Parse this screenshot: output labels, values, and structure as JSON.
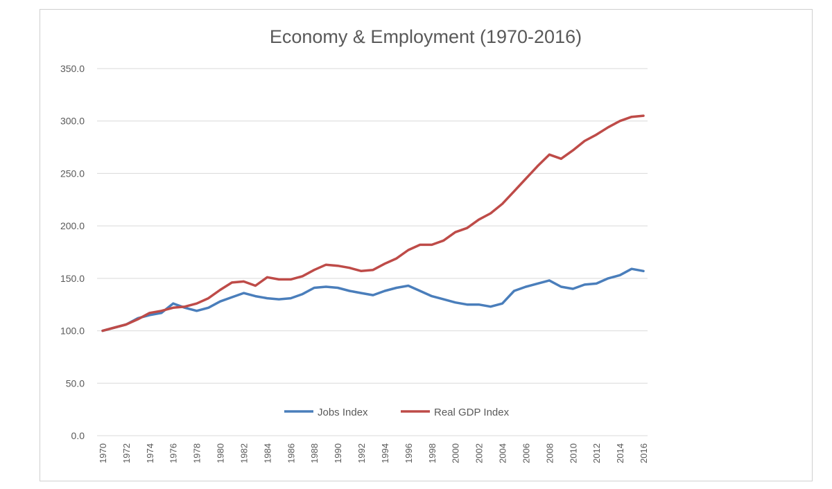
{
  "chart_data": {
    "type": "line",
    "title": "Economy & Employment (1970-2016)",
    "xlabel": "",
    "ylabel": "",
    "ylim": [
      0,
      350
    ],
    "yticks": [
      "0.0",
      "50.0",
      "100.0",
      "150.0",
      "200.0",
      "250.0",
      "300.0",
      "350.0"
    ],
    "grid": "horizontal",
    "legend": "bottom-center",
    "x": [
      1970,
      1971,
      1972,
      1973,
      1974,
      1975,
      1976,
      1977,
      1978,
      1979,
      1980,
      1981,
      1982,
      1983,
      1984,
      1985,
      1986,
      1987,
      1988,
      1989,
      1990,
      1991,
      1992,
      1993,
      1994,
      1995,
      1996,
      1997,
      1998,
      1999,
      2000,
      2001,
      2002,
      2003,
      2004,
      2005,
      2006,
      2007,
      2008,
      2009,
      2010,
      2011,
      2012,
      2013,
      2014,
      2015,
      2016
    ],
    "xticks": [
      "1970",
      "1972",
      "1974",
      "1976",
      "1978",
      "1980",
      "1982",
      "1984",
      "1986",
      "1988",
      "1990",
      "1992",
      "1994",
      "1996",
      "1998",
      "2000",
      "2002",
      "2004",
      "2006",
      "2008",
      "2010",
      "2012",
      "2014",
      "2016"
    ],
    "series": [
      {
        "name": "Jobs Index",
        "color": "#4a7ebb",
        "values": [
          100,
          103,
          106,
          112,
          115,
          117,
          126,
          122,
          119,
          122,
          128,
          132,
          136,
          133,
          131,
          130,
          131,
          135,
          141,
          142,
          141,
          138,
          136,
          134,
          138,
          141,
          143,
          138,
          133,
          130,
          127,
          125,
          125,
          123,
          126,
          138,
          142,
          145,
          148,
          142,
          140,
          144,
          145,
          150,
          153,
          159,
          157
        ]
      },
      {
        "name": "Real GDP Index",
        "color": "#be4b48",
        "values": [
          100,
          103,
          106,
          111,
          117,
          119,
          122,
          123,
          126,
          131,
          139,
          146,
          147,
          143,
          151,
          149,
          149,
          152,
          158,
          163,
          162,
          160,
          157,
          158,
          164,
          169,
          177,
          182,
          182,
          186,
          194,
          198,
          206,
          212,
          221,
          233,
          245,
          257,
          268,
          264,
          272,
          281,
          287,
          294,
          300,
          304,
          305
        ]
      }
    ]
  }
}
